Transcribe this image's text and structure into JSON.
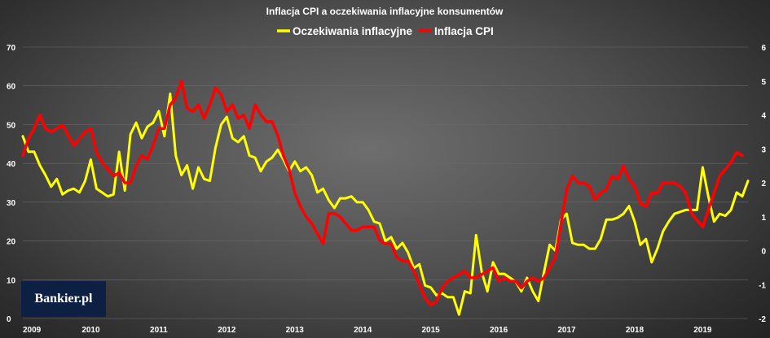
{
  "chart_data": {
    "type": "line",
    "title": "Inflacja CPI a oczekiwania inflacyjne konsumentów",
    "x_ticks": [
      "2009",
      "2010",
      "2011",
      "2012",
      "2013",
      "2014",
      "2015",
      "2016",
      "2017",
      "2018",
      "2019"
    ],
    "y_left": {
      "min": 0,
      "max": 70,
      "ticks": [
        0,
        10,
        20,
        30,
        40,
        50,
        60,
        70
      ]
    },
    "y_right": {
      "min": -2,
      "max": 6,
      "ticks": [
        -2,
        -1,
        0,
        1,
        2,
        3,
        4,
        5,
        6
      ]
    },
    "grid": true,
    "legend_position": "top",
    "series": [
      {
        "name": "Oczekiwania inflacyjne",
        "color": "#ffff00",
        "axis": "left",
        "start": "2009-01",
        "frequency": "monthly",
        "values": [
          47,
          43,
          43,
          39.5,
          37,
          34,
          36,
          32,
          33,
          33.5,
          32.5,
          35.5,
          41,
          33.5,
          32.5,
          31.5,
          32,
          43,
          33,
          47.5,
          50.5,
          46.5,
          49.5,
          50.5,
          53.5,
          47,
          58,
          42,
          37,
          39.5,
          33.5,
          39,
          36,
          35.5,
          44,
          50,
          52,
          46.5,
          45.5,
          47,
          42,
          41.5,
          38,
          40.5,
          41.5,
          43.5,
          41,
          38,
          40.5,
          38,
          39,
          37,
          32.5,
          33.5,
          30.5,
          28.5,
          31,
          31,
          31.5,
          30,
          30,
          28,
          25,
          24.5,
          20,
          21,
          18,
          19.5,
          17,
          13,
          14,
          8.5,
          8,
          6,
          6.5,
          5.5,
          5.5,
          1,
          7,
          6.5,
          21.5,
          12,
          7,
          14.5,
          11.5,
          11.5,
          10.5,
          9.5,
          7,
          10.5,
          7,
          4.5,
          12,
          19,
          17.5,
          25.5,
          27,
          19.5,
          19,
          19,
          18,
          18,
          20.5,
          25.5,
          25.5,
          26,
          27,
          29,
          25,
          19,
          20.5,
          14.5,
          18,
          22.5,
          25,
          27,
          27.5,
          28,
          28,
          28,
          39,
          31.5,
          25,
          27,
          26.5,
          28,
          32.5,
          31.5,
          35.5
        ]
      },
      {
        "name": "Inflacja CPI",
        "color": "#ff0000",
        "axis": "right",
        "start": "2009-01",
        "frequency": "monthly",
        "values": [
          2.8,
          3.3,
          3.6,
          4.0,
          3.6,
          3.5,
          3.6,
          3.7,
          3.4,
          3.1,
          3.3,
          3.5,
          3.6,
          2.9,
          2.6,
          2.4,
          2.2,
          2.3,
          2.0,
          2.0,
          2.5,
          2.8,
          2.7,
          3.1,
          3.6,
          3.6,
          4.3,
          4.5,
          5.0,
          4.2,
          4.1,
          4.3,
          3.9,
          4.3,
          4.8,
          4.6,
          4.1,
          4.3,
          3.9,
          4.0,
          3.6,
          4.3,
          4.0,
          3.8,
          3.8,
          3.4,
          2.8,
          2.4,
          1.7,
          1.3,
          1.0,
          0.8,
          0.5,
          0.2,
          1.1,
          1.1,
          1.0,
          0.8,
          0.6,
          0.6,
          0.7,
          0.7,
          0.7,
          0.3,
          0.2,
          0.2,
          -0.2,
          -0.3,
          -0.3,
          -0.6,
          -1.0,
          -1.4,
          -1.6,
          -1.5,
          -1.1,
          -0.9,
          -0.8,
          -0.7,
          -0.6,
          -0.8,
          -0.8,
          -0.7,
          -0.6,
          -0.5,
          -0.9,
          -0.8,
          -0.9,
          -0.9,
          -1.1,
          -0.9,
          -0.8,
          -0.9,
          -0.8,
          -0.5,
          -0.2,
          0.8,
          1.8,
          2.2,
          2.0,
          2.0,
          1.9,
          1.5,
          1.7,
          1.8,
          2.2,
          2.1,
          2.5,
          2.1,
          1.9,
          1.4,
          1.3,
          1.7,
          1.7,
          2.0,
          2.0,
          2.0,
          1.9,
          1.7,
          1.1,
          0.9,
          0.7,
          1.2,
          1.7,
          2.2,
          2.4,
          2.6,
          2.9,
          2.8
        ]
      }
    ]
  },
  "brand": {
    "logo_text": "Bankier.pl",
    "logo_bg": "#0e1f44"
  }
}
